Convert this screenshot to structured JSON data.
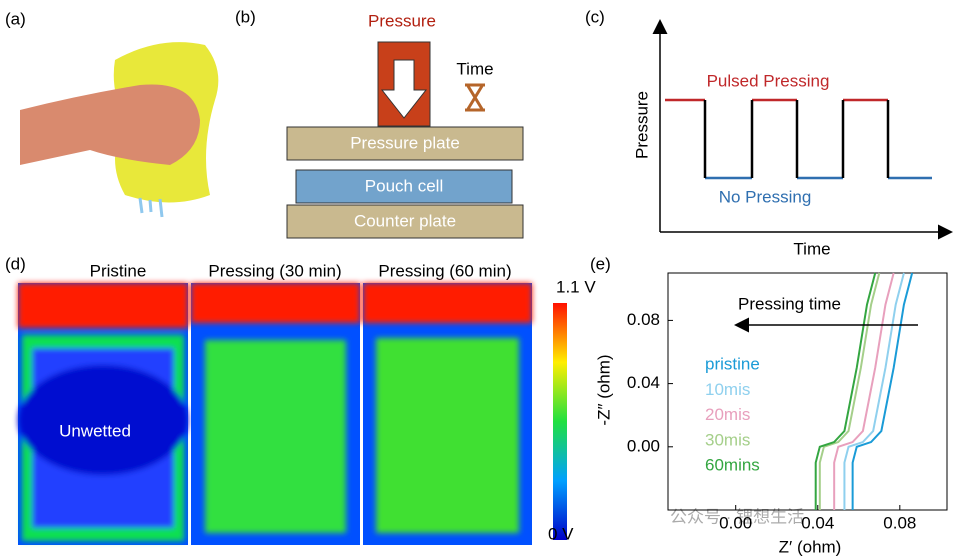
{
  "panel_a": {
    "label": "(a)"
  },
  "panel_b": {
    "label": "(b)",
    "pressure": "Pressure",
    "time": "Time",
    "pressure_plate": "Pressure plate",
    "pouch_cell": "Pouch cell",
    "counter_plate": "Counter plate"
  },
  "panel_c": {
    "label": "(c)",
    "y_label": "Pressure",
    "x_label": "Time",
    "high": "Pulsed Pressing",
    "low": "No Pressing"
  },
  "panel_d": {
    "label": "(d)",
    "titles": [
      "Pristine",
      "Pressing (30 min)",
      "Pressing (60 min)"
    ],
    "annotation": "Unwetted",
    "colorbar_max": "1.1 V",
    "colorbar_min": "0 V"
  },
  "watermark": "公众号 · 锂想生活",
  "chart_data": {
    "type": "line",
    "label": "(e)",
    "x_label": "Z′ (ohm)",
    "y_label": "-Z″ (ohm)",
    "annotation": "Pressing time",
    "xlim": [
      -0.033,
      0.103
    ],
    "ylim": [
      -0.04,
      0.11
    ],
    "xticks": [
      {
        "value": 0,
        "label": "0.00"
      },
      0.04,
      0.08
    ],
    "yticks": [
      {
        "value": 0,
        "label": "0.00"
      },
      0.04,
      0.08
    ],
    "series": [
      {
        "name": "pristine",
        "color": "#1a9bd7",
        "x": [
          0.057,
          0.057,
          0.059,
          0.066,
          0.071,
          0.077,
          0.082,
          0.086
        ],
        "values": [
          -0.04,
          -0.01,
          0.0,
          0.003,
          0.01,
          0.05,
          0.09,
          0.11
        ]
      },
      {
        "name": "10mis",
        "color": "#8fd0ee",
        "x": [
          0.053,
          0.053,
          0.055,
          0.062,
          0.067,
          0.073,
          0.078,
          0.082
        ],
        "values": [
          -0.04,
          -0.01,
          0.0,
          0.003,
          0.01,
          0.05,
          0.09,
          0.11
        ]
      },
      {
        "name": "20mis",
        "color": "#e8a0bd",
        "x": [
          0.048,
          0.048,
          0.05,
          0.057,
          0.062,
          0.068,
          0.073,
          0.077
        ],
        "values": [
          -0.04,
          -0.01,
          0.0,
          0.003,
          0.01,
          0.05,
          0.09,
          0.11
        ]
      },
      {
        "name": "30mis",
        "color": "#a5cf8a",
        "x": [
          0.041,
          0.041,
          0.043,
          0.05,
          0.055,
          0.061,
          0.066,
          0.07
        ],
        "values": [
          -0.04,
          -0.01,
          0.0,
          0.003,
          0.01,
          0.05,
          0.09,
          0.11
        ]
      },
      {
        "name": "60mins",
        "color": "#34a641",
        "x": [
          0.039,
          0.039,
          0.041,
          0.048,
          0.053,
          0.059,
          0.064,
          0.068
        ],
        "values": [
          -0.04,
          -0.01,
          0.0,
          0.003,
          0.01,
          0.05,
          0.09,
          0.11
        ]
      }
    ]
  }
}
